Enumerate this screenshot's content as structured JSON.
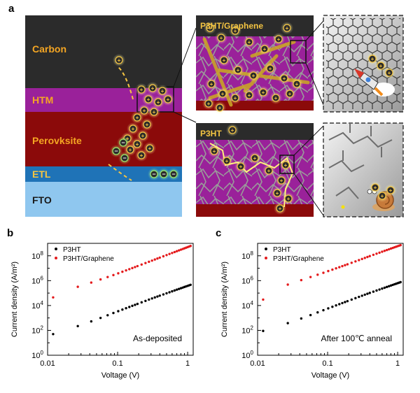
{
  "panel_a": {
    "letter": "a",
    "layers": [
      {
        "label": "Carbon",
        "color": "#2b2b2b",
        "text_color": "#f5a623"
      },
      {
        "label": "HTM",
        "color": "#9a219a",
        "text_color": "#f5a623"
      },
      {
        "label": "Perovksite",
        "color": "#8b0a0a",
        "text_color": "#f5a623"
      },
      {
        "label": "ETL",
        "color": "#1f73b7",
        "text_color": "#f5c542"
      },
      {
        "label": "FTO",
        "color": "#8fc7ef",
        "text_color": "#1a1a1a"
      }
    ],
    "charge_plus": "+",
    "charge_minus": "−",
    "inset_top_title": "P3HT/Graphene",
    "inset_bottom_title": "P3HT"
  },
  "charts": [
    {
      "letter": "b",
      "xlabel": "Voltage (V)",
      "ylabel": "Current density (A/m²)",
      "annotation": "As-deposited",
      "legend": [
        "P3HT",
        "P3HT/Graphene"
      ]
    },
    {
      "letter": "c",
      "xlabel": "Voltage (V)",
      "ylabel": "Current density (A/m²)",
      "annotation": "After 100℃ anneal",
      "legend": [
        "P3HT",
        "P3HT/Graphene"
      ]
    }
  ],
  "chart_data": [
    {
      "type": "scatter",
      "title": "",
      "xlabel": "Voltage (V)",
      "ylabel": "Current density (A/m²)",
      "xscale": "log",
      "yscale": "log",
      "xlim": [
        0.01,
        1.2
      ],
      "ylim": [
        1,
        1000000000
      ],
      "x_ticks": [
        "0.01",
        "0.1",
        "1"
      ],
      "y_ticks": [
        "10^0",
        "10^2",
        "10^4",
        "10^6",
        "10^8"
      ],
      "legend_position": "top-left",
      "series": [
        {
          "name": "P3HT",
          "color": "#000000",
          "x": [
            0.012,
            0.027,
            0.042,
            0.057,
            0.072,
            0.087,
            0.102,
            0.117,
            0.132,
            0.147,
            0.162,
            0.177,
            0.192,
            0.22,
            0.25,
            0.28,
            0.31,
            0.34,
            0.37,
            0.4,
            0.45,
            0.5,
            0.55,
            0.6,
            0.65,
            0.7,
            0.75,
            0.8,
            0.85,
            0.9,
            0.95,
            1.0,
            1.05,
            1.1
          ],
          "y": [
            50,
            220,
            530,
            1000,
            1650,
            2500,
            3500,
            4700,
            6100,
            7600,
            9400,
            11300,
            13500,
            18000,
            23500,
            30000,
            37000,
            44500,
            53000,
            62000,
            78000,
            96000,
            116000,
            138000,
            162000,
            188000,
            215000,
            245000,
            276000,
            310000,
            345000,
            382000,
            421000,
            462000
          ]
        },
        {
          "name": "P3HT/Graphene",
          "color": "#e41a1c",
          "x": [
            0.012,
            0.027,
            0.042,
            0.057,
            0.072,
            0.087,
            0.102,
            0.117,
            0.132,
            0.147,
            0.162,
            0.177,
            0.192,
            0.22,
            0.25,
            0.28,
            0.31,
            0.34,
            0.37,
            0.4,
            0.45,
            0.5,
            0.55,
            0.6,
            0.65,
            0.7,
            0.75,
            0.8,
            0.85,
            0.9,
            0.95,
            1.0,
            1.05,
            1.1
          ],
          "y": [
            45000,
            320000,
            700000,
            1250000,
            1950000,
            2800000,
            3900000,
            5200000,
            6700000,
            8400000,
            10300000,
            12400000,
            14800000,
            19800000,
            26000000,
            33000000,
            41000000,
            50000000,
            60000000,
            71000000,
            91000000,
            114000000,
            140000000,
            168000000,
            199000000,
            233000000,
            270000000,
            310000000,
            352000000,
            398000000,
            447000000,
            500000000,
            555000000,
            615000000
          ]
        }
      ]
    },
    {
      "type": "scatter",
      "title": "",
      "xlabel": "Voltage (V)",
      "ylabel": "Current density (A/m²)",
      "xscale": "log",
      "yscale": "log",
      "xlim": [
        0.01,
        1.2
      ],
      "ylim": [
        1,
        1000000000
      ],
      "x_ticks": [
        "0.01",
        "0.1",
        "1"
      ],
      "y_ticks": [
        "10^0",
        "10^2",
        "10^4",
        "10^6",
        "10^8"
      ],
      "legend_position": "top-left",
      "series": [
        {
          "name": "P3HT",
          "color": "#000000",
          "x": [
            0.012,
            0.027,
            0.042,
            0.057,
            0.072,
            0.087,
            0.102,
            0.117,
            0.132,
            0.147,
            0.162,
            0.177,
            0.192,
            0.22,
            0.25,
            0.28,
            0.31,
            0.34,
            0.37,
            0.4,
            0.45,
            0.5,
            0.55,
            0.6,
            0.65,
            0.7,
            0.75,
            0.8,
            0.85,
            0.9,
            0.95,
            1.0,
            1.05,
            1.1
          ],
          "y": [
            90,
            380,
            900,
            1700,
            2800,
            4200,
            5900,
            7900,
            10200,
            12800,
            15700,
            18900,
            22400,
            30000,
            39000,
            49500,
            61000,
            74000,
            88000,
            103000,
            130000,
            160000,
            193000,
            229000,
            268000,
            310000,
            355000,
            403000,
            454000,
            508000,
            565000,
            625000,
            688000,
            755000
          ]
        },
        {
          "name": "P3HT/Graphene",
          "color": "#e41a1c",
          "x": [
            0.012,
            0.027,
            0.042,
            0.057,
            0.072,
            0.087,
            0.102,
            0.117,
            0.132,
            0.147,
            0.162,
            0.177,
            0.192,
            0.22,
            0.25,
            0.28,
            0.31,
            0.34,
            0.37,
            0.4,
            0.45,
            0.5,
            0.55,
            0.6,
            0.65,
            0.7,
            0.75,
            0.8,
            0.85,
            0.9,
            0.95,
            1.0,
            1.05,
            1.1
          ],
          "y": [
            30000,
            480000,
            1100000,
            1950000,
            3000000,
            4300000,
            5900000,
            7700000,
            9800000,
            12100000,
            14700000,
            17500000,
            20600000,
            27400000,
            35500000,
            45000000,
            55500000,
            67000000,
            80000000,
            94000000,
            119000000,
            147000000,
            178000000,
            212000000,
            249000000,
            289000000,
            332000000,
            378000000,
            427000000,
            479000000,
            534000000,
            592000000,
            653000000,
            717000000
          ]
        }
      ]
    }
  ]
}
